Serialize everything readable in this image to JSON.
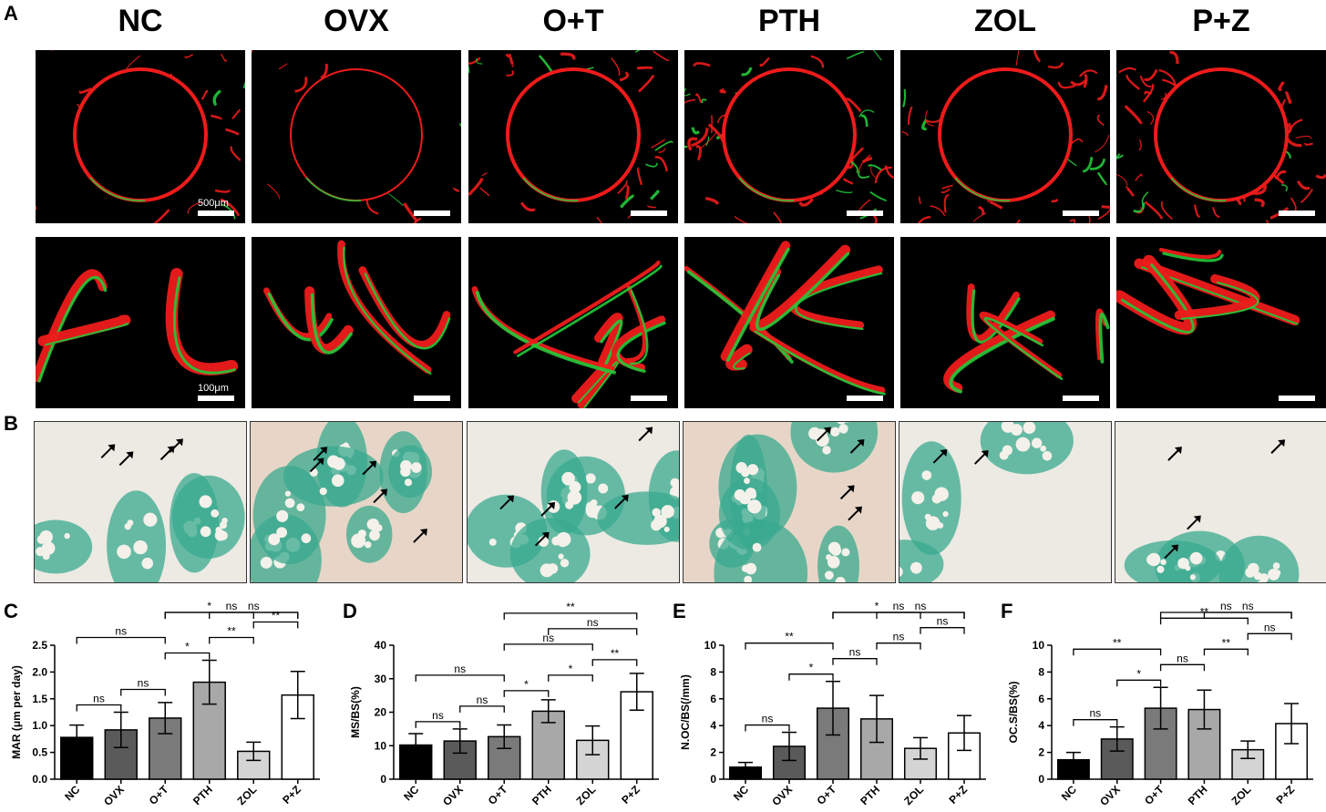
{
  "panels": {
    "A": "A",
    "B": "B",
    "C": "C",
    "D": "D",
    "E": "E",
    "F": "F"
  },
  "groups": [
    "NC",
    "OVX",
    "O+T",
    "PTH",
    "ZOL",
    "P+Z"
  ],
  "scale_labels": {
    "top": "500μm",
    "bottom": "100μm"
  },
  "colors": {
    "bar_fills": [
      "#000000",
      "#5a5a5a",
      "#7a7a7a",
      "#a8a8a8",
      "#d4d4d4",
      "#ffffff"
    ],
    "calcein": "#22c93a",
    "alizarin": "#ee1b1b",
    "marrow": "#3aa98f"
  },
  "chart_data": [
    {
      "type": "bar",
      "panel": "C",
      "categories": [
        "NC",
        "OVX",
        "O+T",
        "PTH",
        "ZOL",
        "P+Z"
      ],
      "values": [
        0.78,
        0.92,
        1.14,
        1.81,
        0.52,
        1.57
      ],
      "errors": [
        0.23,
        0.33,
        0.29,
        0.41,
        0.17,
        0.44
      ],
      "ylabel": "MAR (",
      "ylabel_mu": "μm per day)",
      "ylim": [
        0,
        2.5
      ],
      "yticks": [
        "0.0",
        "0.5",
        "1.0",
        "1.5",
        "2.0",
        "2.5"
      ],
      "significance": [
        {
          "a": 0,
          "b": 1,
          "label": "ns"
        },
        {
          "a": 1,
          "b": 2,
          "label": "ns"
        },
        {
          "a": 0,
          "b": 2,
          "label": "ns"
        },
        {
          "a": 2,
          "b": 3,
          "label": "*"
        },
        {
          "a": 3,
          "b": 4,
          "label": "**"
        },
        {
          "a": 4,
          "b": 5,
          "label": "**"
        },
        {
          "a": 2,
          "b": 4,
          "label": "*"
        },
        {
          "a": 2,
          "b": 5,
          "label": "ns"
        },
        {
          "a": 3,
          "b": 5,
          "label": "ns"
        }
      ]
    },
    {
      "type": "bar",
      "panel": "D",
      "categories": [
        "NC",
        "OVX",
        "O+T",
        "PTH",
        "ZOL",
        "P+Z"
      ],
      "values": [
        10.2,
        11.4,
        12.7,
        20.3,
        11.6,
        26.1
      ],
      "errors": [
        3.4,
        3.6,
        3.5,
        3.4,
        4.3,
        5.5
      ],
      "ylabel": "MS/BS(%)",
      "ylim": [
        0,
        40
      ],
      "yticks": [
        "0",
        "10",
        "20",
        "30",
        "40"
      ],
      "significance": [
        {
          "a": 0,
          "b": 1,
          "label": "ns"
        },
        {
          "a": 1,
          "b": 2,
          "label": "ns"
        },
        {
          "a": 0,
          "b": 2,
          "label": "ns"
        },
        {
          "a": 2,
          "b": 3,
          "label": "*"
        },
        {
          "a": 3,
          "b": 4,
          "label": "*"
        },
        {
          "a": 4,
          "b": 5,
          "label": "**"
        },
        {
          "a": 2,
          "b": 4,
          "label": "ns"
        },
        {
          "a": 2,
          "b": 5,
          "label": "**"
        },
        {
          "a": 3,
          "b": 5,
          "label": "ns"
        }
      ]
    },
    {
      "type": "bar",
      "panel": "E",
      "categories": [
        "NC",
        "OVX",
        "O+T",
        "PTH",
        "ZOL",
        "P+Z"
      ],
      "values": [
        0.9,
        2.45,
        5.3,
        4.5,
        2.3,
        3.45
      ],
      "errors": [
        0.35,
        1.05,
        2.0,
        1.75,
        0.8,
        1.3
      ],
      "ylabel": "N.OC/BS(/mm)",
      "ylim": [
        0,
        10
      ],
      "yticks": [
        "0",
        "2",
        "4",
        "6",
        "8",
        "10"
      ],
      "significance": [
        {
          "a": 0,
          "b": 1,
          "label": "ns"
        },
        {
          "a": 1,
          "b": 2,
          "label": "*"
        },
        {
          "a": 0,
          "b": 2,
          "label": "**"
        },
        {
          "a": 2,
          "b": 3,
          "label": "ns"
        },
        {
          "a": 3,
          "b": 4,
          "label": "ns"
        },
        {
          "a": 4,
          "b": 5,
          "label": "ns"
        },
        {
          "a": 2,
          "b": 4,
          "label": "*"
        },
        {
          "a": 2,
          "b": 5,
          "label": "ns"
        },
        {
          "a": 3,
          "b": 5,
          "label": "ns"
        }
      ]
    },
    {
      "type": "bar",
      "panel": "F",
      "categories": [
        "NC",
        "OVX",
        "O+T",
        "PTH",
        "ZOL",
        "P+Z"
      ],
      "values": [
        1.45,
        3.0,
        5.3,
        5.2,
        2.2,
        4.15
      ],
      "errors": [
        0.55,
        0.9,
        1.55,
        1.45,
        0.65,
        1.5
      ],
      "ylabel": "OC.S/BS(%)",
      "ylim": [
        0,
        10
      ],
      "yticks": [
        "0",
        "2",
        "4",
        "6",
        "8",
        "10"
      ],
      "significance": [
        {
          "a": 0,
          "b": 1,
          "label": "ns"
        },
        {
          "a": 1,
          "b": 2,
          "label": "*"
        },
        {
          "a": 0,
          "b": 2,
          "label": "**"
        },
        {
          "a": 2,
          "b": 3,
          "label": "ns"
        },
        {
          "a": 3,
          "b": 4,
          "label": "**"
        },
        {
          "a": 4,
          "b": 5,
          "label": "ns"
        },
        {
          "a": 2,
          "b": 4,
          "label": "**"
        },
        {
          "a": 2,
          "b": 5,
          "label": "ns"
        },
        {
          "a": 3,
          "b": 5,
          "label": "ns"
        }
      ]
    }
  ]
}
